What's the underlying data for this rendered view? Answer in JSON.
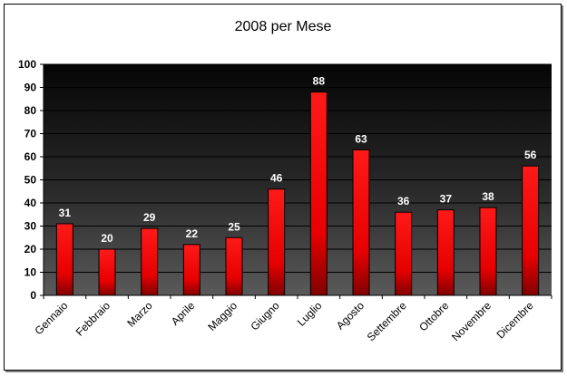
{
  "chart_data": {
    "type": "bar",
    "title": "2008 per Mese",
    "xlabel": "",
    "ylabel": "",
    "categories": [
      "Gennaio",
      "Febbraio",
      "Marzo",
      "Aprile",
      "Maggio",
      "Giugno",
      "Luglio",
      "Agosto",
      "Settembre",
      "Ottobre",
      "Novembre",
      "Dicembre"
    ],
    "values": [
      31,
      20,
      29,
      22,
      25,
      46,
      88,
      63,
      36,
      37,
      38,
      56
    ],
    "ylim": [
      0,
      100
    ],
    "yticks": [
      0,
      10,
      20,
      30,
      40,
      50,
      60,
      70,
      80,
      90,
      100
    ],
    "grid": true,
    "legend": "none",
    "data_labels": true,
    "bar_color": "#ff0000",
    "plot_background": "#000000"
  }
}
